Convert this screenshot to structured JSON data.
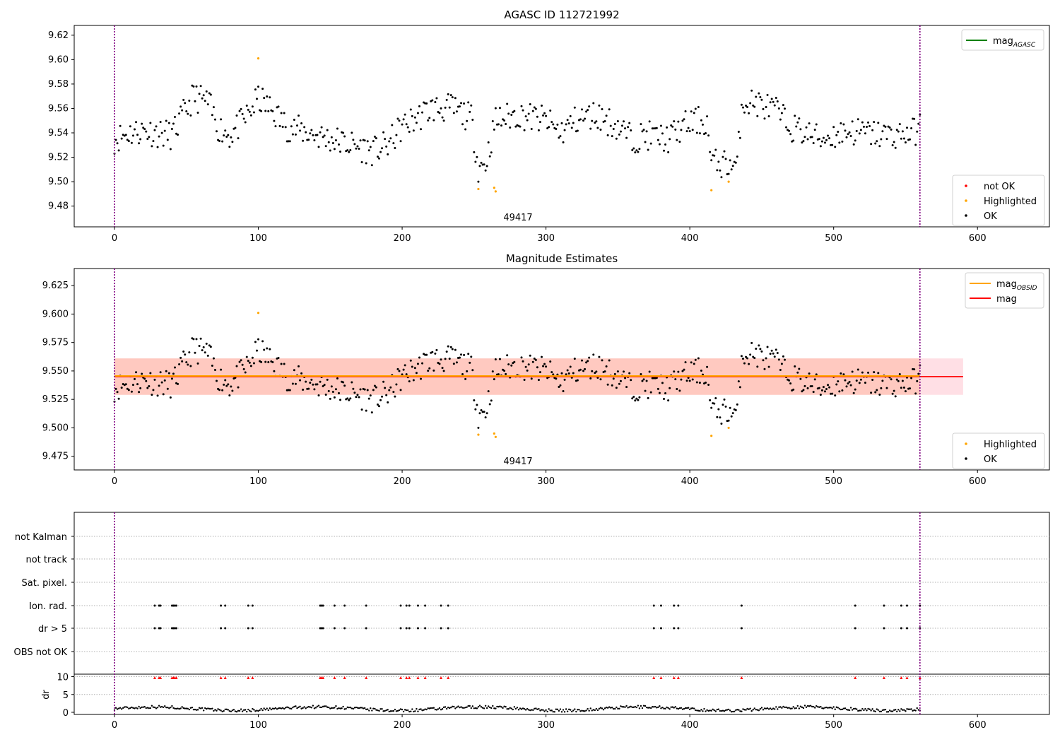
{
  "chart_data": [
    {
      "type": "scatter",
      "title": "AGASC ID 112721992",
      "annotation": "49417",
      "xlim": [
        -28,
        650
      ],
      "ylim": [
        9.463,
        9.628
      ],
      "xticks": [
        "0",
        "100",
        "200",
        "300",
        "400",
        "500",
        "600"
      ],
      "yticks": [
        "9.48",
        "9.50",
        "9.52",
        "9.54",
        "9.56",
        "9.58",
        "9.60",
        "9.62"
      ],
      "vlines": [
        0,
        560
      ],
      "legend_top": [
        {
          "label": "mag",
          "subscript": "AGASC",
          "color": "#008000",
          "kind": "line"
        }
      ],
      "legend_bottom": [
        {
          "label": "not OK",
          "color": "#ff0000",
          "kind": "dot"
        },
        {
          "label": "Highlighted",
          "color": "#ffa500",
          "kind": "dot"
        },
        {
          "label": "OK",
          "color": "#000000",
          "kind": "dot"
        }
      ],
      "highlighted": [
        [
          100,
          9.601
        ],
        [
          253,
          9.494
        ],
        [
          264,
          9.495
        ],
        [
          265,
          9.492
        ],
        [
          415,
          9.493
        ],
        [
          427,
          9.5
        ]
      ]
    },
    {
      "type": "scatter",
      "title": "Magnitude Estimates",
      "annotation": "49417",
      "xlim": [
        -28,
        650
      ],
      "ylim": [
        9.463,
        9.64
      ],
      "xticks": [
        "0",
        "100",
        "200",
        "300",
        "400",
        "500",
        "600"
      ],
      "yticks": [
        "9.475",
        "9.500",
        "9.525",
        "9.550",
        "9.575",
        "9.600",
        "9.625"
      ],
      "vlines": [
        0,
        560
      ],
      "mag_line": {
        "y": 9.545,
        "x_end": 590,
        "band": [
          9.529,
          9.561
        ]
      },
      "obsid_line": {
        "y": 9.545,
        "x_end": 560,
        "band": [
          9.529,
          9.561
        ]
      },
      "legend_top": [
        {
          "label": "mag",
          "subscript": "OBSID",
          "color": "#ffa500",
          "kind": "line"
        },
        {
          "label": "mag",
          "subscript": "",
          "color": "#ff0000",
          "kind": "line"
        }
      ],
      "legend_bottom": [
        {
          "label": "Highlighted",
          "color": "#ffa500",
          "kind": "dot"
        },
        {
          "label": "OK",
          "color": "#000000",
          "kind": "dot"
        }
      ],
      "highlighted": [
        [
          100,
          9.601
        ],
        [
          253,
          9.494
        ],
        [
          264,
          9.495
        ],
        [
          265,
          9.492
        ],
        [
          415,
          9.493
        ],
        [
          427,
          9.5
        ]
      ]
    },
    {
      "type": "scatter",
      "title": "",
      "xlim": [
        -28,
        650
      ],
      "xticks": [
        "0",
        "100",
        "200",
        "300",
        "400",
        "500",
        "600"
      ],
      "vlines": [
        0,
        560
      ],
      "flag_labels": [
        "not Kalman",
        "not track",
        "Sat. pixel.",
        "Ion. rad.",
        "dr > 5",
        "OBS not OK"
      ],
      "flag_points": [
        28,
        31,
        32,
        40,
        41,
        42,
        43,
        74,
        77,
        93,
        96,
        143,
        144,
        145,
        153,
        160,
        175,
        199,
        203,
        205,
        211,
        216,
        227,
        232,
        375,
        380,
        389,
        392,
        436,
        515,
        535,
        547,
        551,
        560
      ],
      "dr_ylabel": "dr",
      "dr_yticks": [
        "0",
        "5",
        "10"
      ],
      "dr_ylim": [
        -0.6,
        10.7
      ]
    }
  ]
}
